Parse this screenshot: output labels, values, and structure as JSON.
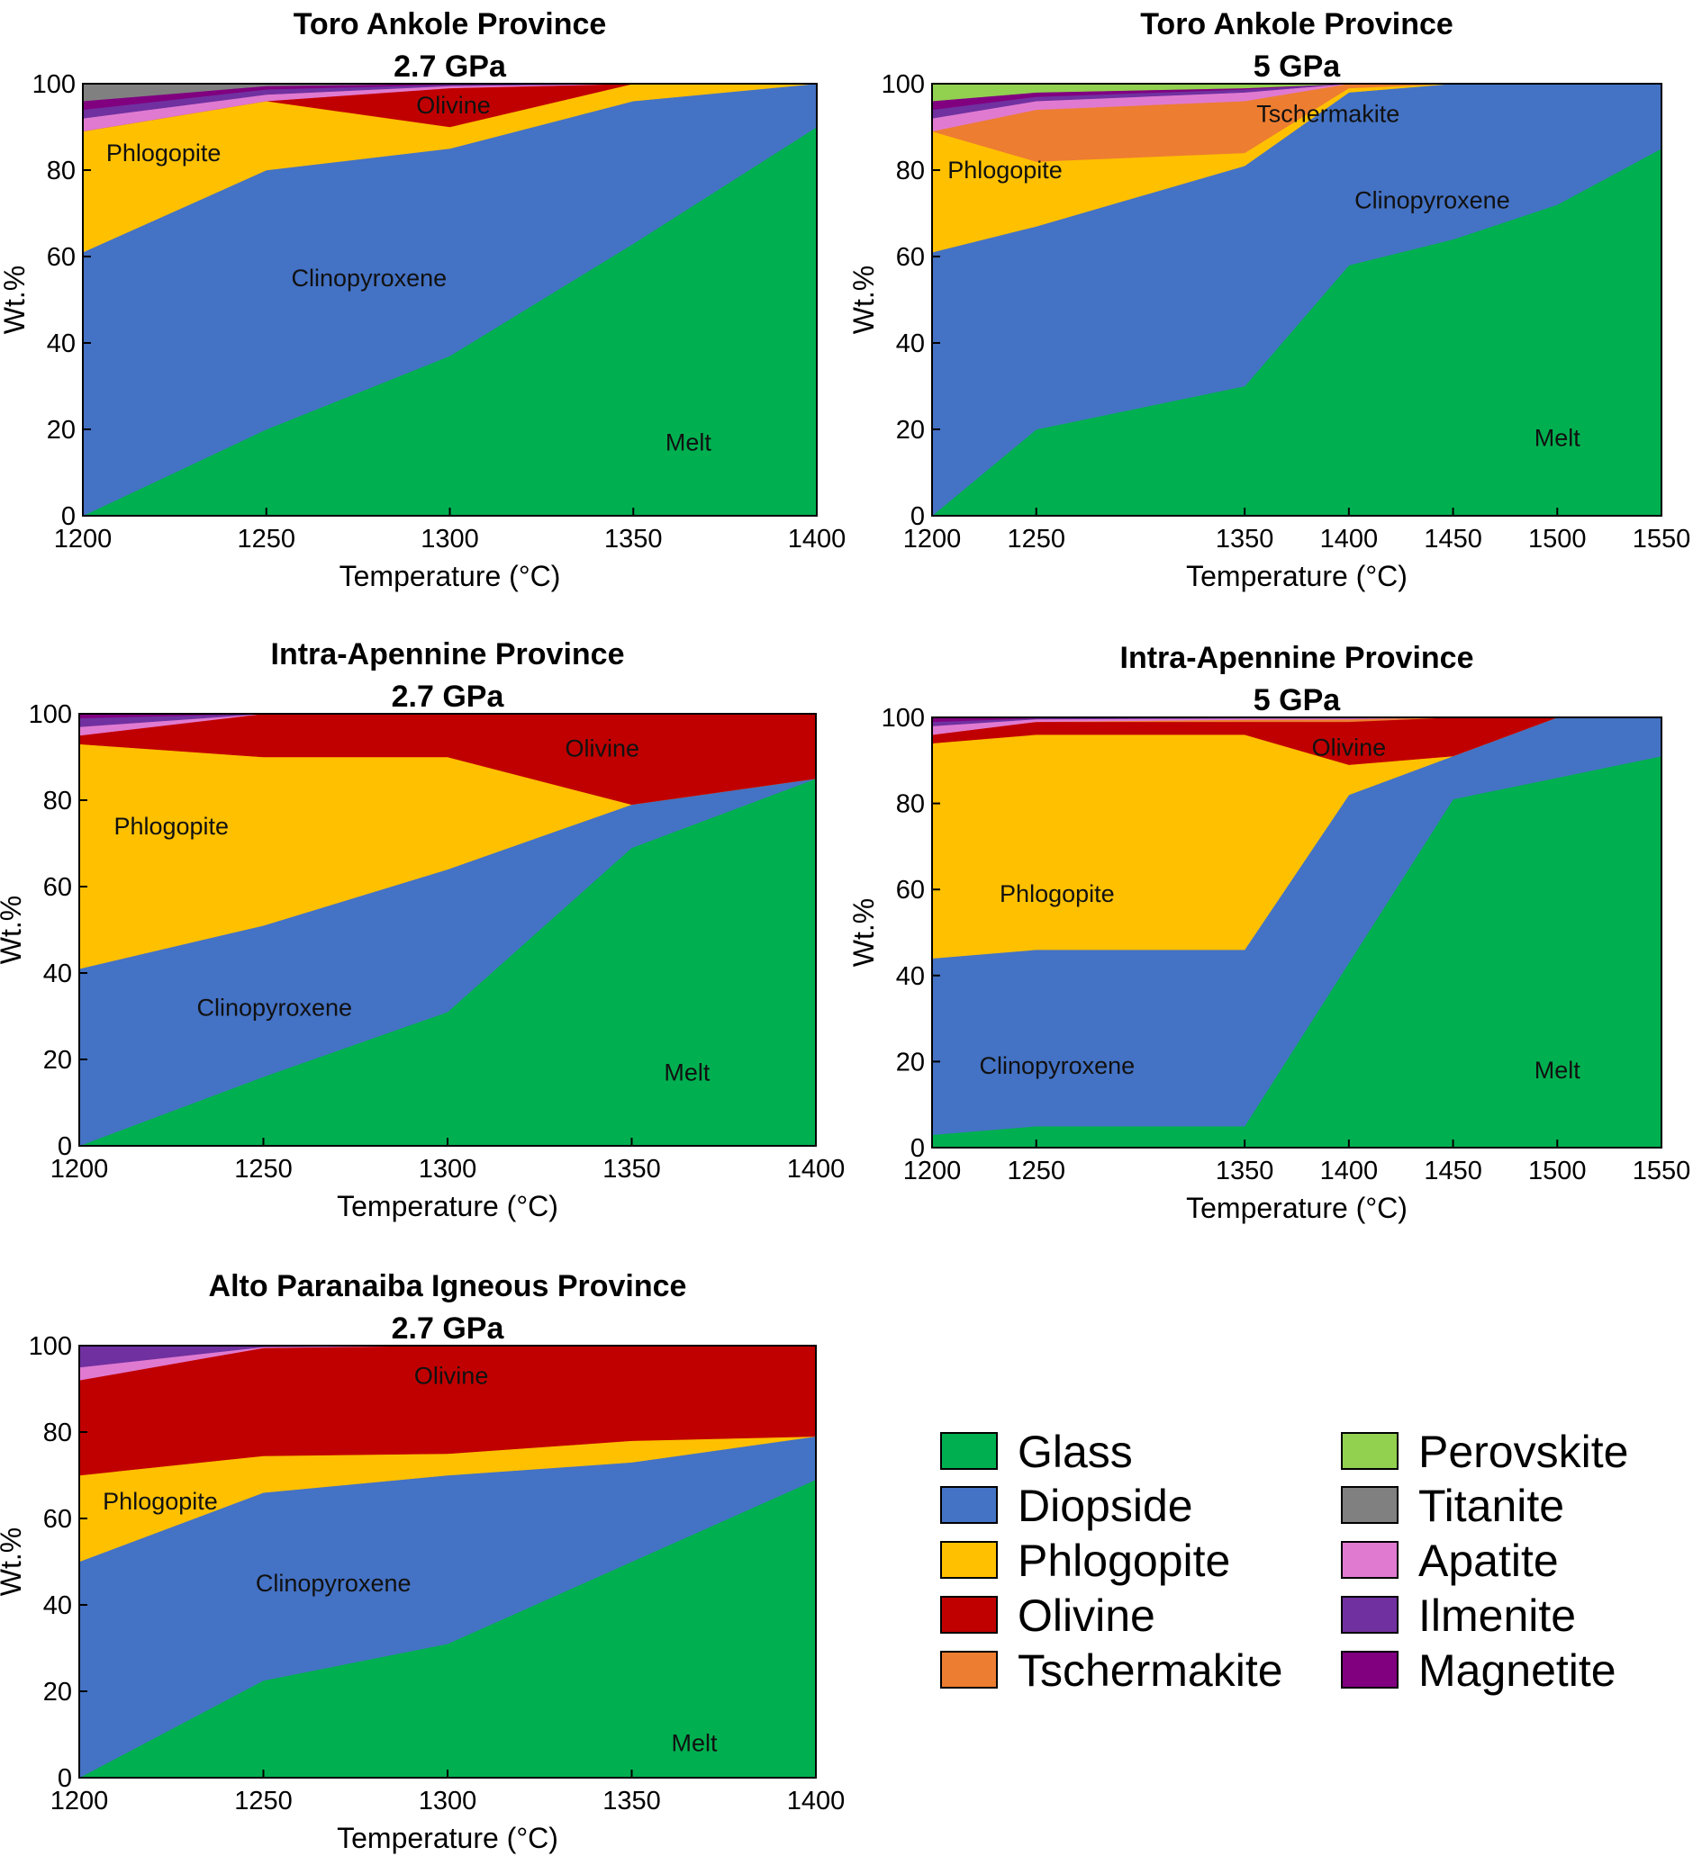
{
  "colors": {
    "Glass": "#00b050",
    "Diopside": "#4472c4",
    "Phlogopite": "#ffc000",
    "Olivine": "#c00000",
    "Tschermakite": "#ed7d31",
    "Perovskite": "#92d050",
    "Titanite": "#808080",
    "Apatite": "#e07ad0",
    "Ilmenite": "#7030a0",
    "Magnetite": "#800080"
  },
  "legend": {
    "col1": [
      "Glass",
      "Diopside",
      "Phlogopite",
      "Olivine",
      "Tschermakite"
    ],
    "col2": [
      "Perovskite",
      "Titanite",
      "Apatite",
      "Ilmenite",
      "Magnetite"
    ]
  },
  "chart_data": [
    {
      "type": "area",
      "title": [
        "Toro Ankole Province",
        "2.7 GPa"
      ],
      "xlabel": "Temperature (°C)",
      "ylabel": "Wt.%",
      "xlim": [
        1200,
        1400
      ],
      "ylim": [
        0,
        100
      ],
      "xticks": [
        1200,
        1250,
        1300,
        1350,
        1400
      ],
      "yticks": [
        0,
        20,
        40,
        60,
        80,
        100
      ],
      "x": [
        1200,
        1250,
        1300,
        1350,
        1400
      ],
      "series": [
        {
          "name": "Glass",
          "values": [
            0,
            20,
            37,
            63,
            90
          ]
        },
        {
          "name": "Diopside",
          "values": [
            61,
            60,
            48,
            33,
            10
          ]
        },
        {
          "name": "Phlogopite",
          "values": [
            28,
            16,
            5,
            4,
            0
          ]
        },
        {
          "name": "Olivine",
          "values": [
            0,
            0,
            9,
            0,
            0
          ]
        },
        {
          "name": "Apatite",
          "values": [
            3,
            1.5,
            0.5,
            0,
            0
          ]
        },
        {
          "name": "Ilmenite",
          "values": [
            2,
            1.2,
            0.3,
            0,
            0
          ]
        },
        {
          "name": "Magnetite",
          "values": [
            2,
            0.8,
            0.2,
            0,
            0
          ]
        },
        {
          "name": "Titanite",
          "values": [
            4,
            0.5,
            0,
            0,
            0
          ]
        }
      ],
      "region_labels": [
        {
          "text": "Phlogopite",
          "x": 1222,
          "y": 84
        },
        {
          "text": "Olivine",
          "x": 1301,
          "y": 95
        },
        {
          "text": "Clinopyroxene",
          "x": 1278,
          "y": 55
        },
        {
          "text": "Melt",
          "x": 1365,
          "y": 17
        }
      ]
    },
    {
      "type": "area",
      "title": [
        "Toro Ankole Province",
        "5 GPa"
      ],
      "xlabel": "Temperature (°C)",
      "ylabel": "Wt.%",
      "xlim": [
        1200,
        1550
      ],
      "ylim": [
        0,
        100
      ],
      "xticks": [
        1200,
        1250,
        1350,
        1400,
        1450,
        1500,
        1550
      ],
      "yticks": [
        0,
        20,
        40,
        60,
        80,
        100
      ],
      "x": [
        1200,
        1250,
        1350,
        1400,
        1450,
        1500,
        1550
      ],
      "series": [
        {
          "name": "Glass",
          "values": [
            0,
            20,
            30,
            58,
            64,
            72,
            85
          ]
        },
        {
          "name": "Diopside",
          "values": [
            61,
            47,
            51,
            40,
            36,
            28,
            15
          ]
        },
        {
          "name": "Phlogopite",
          "values": [
            28,
            15,
            3,
            1,
            0,
            0,
            0
          ]
        },
        {
          "name": "Tschermakite",
          "values": [
            0,
            12,
            12,
            1,
            0,
            0,
            0
          ]
        },
        {
          "name": "Apatite",
          "values": [
            3,
            2,
            2,
            0,
            0,
            0,
            0
          ]
        },
        {
          "name": "Ilmenite",
          "values": [
            2,
            1,
            0.7,
            0,
            0,
            0,
            0
          ]
        },
        {
          "name": "Magnetite",
          "values": [
            2,
            1,
            0.3,
            0,
            0,
            0,
            0
          ]
        },
        {
          "name": "Perovskite",
          "values": [
            4,
            2,
            1,
            0,
            0,
            0,
            0
          ]
        }
      ],
      "region_labels": [
        {
          "text": "Phlogopite",
          "x": 1235,
          "y": 80
        },
        {
          "text": "Tschermakite",
          "x": 1390,
          "y": 93
        },
        {
          "text": "Clinopyroxene",
          "x": 1440,
          "y": 73
        },
        {
          "text": "Melt",
          "x": 1500,
          "y": 18
        }
      ]
    },
    {
      "type": "area",
      "title": [
        "Intra-Apennine Province",
        "2.7 GPa"
      ],
      "xlabel": "Temperature (°C)",
      "ylabel": "Wt.%",
      "xlim": [
        1200,
        1400
      ],
      "ylim": [
        0,
        100
      ],
      "xticks": [
        1200,
        1250,
        1300,
        1350,
        1400
      ],
      "yticks": [
        0,
        20,
        40,
        60,
        80,
        100
      ],
      "x": [
        1200,
        1250,
        1300,
        1350,
        1400
      ],
      "series": [
        {
          "name": "Glass",
          "values": [
            0,
            16,
            31,
            69,
            85
          ]
        },
        {
          "name": "Diopside",
          "values": [
            41,
            35,
            33,
            10,
            0
          ]
        },
        {
          "name": "Phlogopite",
          "values": [
            52,
            39,
            26,
            0,
            0
          ]
        },
        {
          "name": "Olivine",
          "values": [
            2,
            10,
            10,
            21,
            15
          ]
        },
        {
          "name": "Apatite",
          "values": [
            2,
            0,
            0,
            0,
            0
          ]
        },
        {
          "name": "Ilmenite",
          "values": [
            2,
            0,
            0,
            0,
            0
          ]
        },
        {
          "name": "Magnetite",
          "values": [
            1,
            0,
            0,
            0,
            0
          ]
        }
      ],
      "region_labels": [
        {
          "text": "Phlogopite",
          "x": 1225,
          "y": 74
        },
        {
          "text": "Olivine",
          "x": 1342,
          "y": 92
        },
        {
          "text": "Clinopyroxene",
          "x": 1253,
          "y": 32
        },
        {
          "text": "Melt",
          "x": 1365,
          "y": 17
        }
      ]
    },
    {
      "type": "area",
      "title": [
        "Intra-Apennine Province",
        "5 GPa"
      ],
      "xlabel": "Temperature (°C)",
      "ylabel": "Wt.%",
      "xlim": [
        1200,
        1550
      ],
      "ylim": [
        0,
        100
      ],
      "xticks": [
        1200,
        1250,
        1350,
        1400,
        1450,
        1500,
        1550
      ],
      "yticks": [
        0,
        20,
        40,
        60,
        80,
        100
      ],
      "x": [
        1200,
        1250,
        1350,
        1400,
        1450,
        1500,
        1550
      ],
      "series": [
        {
          "name": "Glass",
          "values": [
            3,
            5,
            5,
            43,
            81,
            86,
            91
          ]
        },
        {
          "name": "Diopside",
          "values": [
            41,
            41,
            41,
            39,
            10,
            14,
            9
          ]
        },
        {
          "name": "Phlogopite",
          "values": [
            50,
            50,
            50,
            7,
            0,
            0,
            0
          ]
        },
        {
          "name": "Olivine",
          "values": [
            2,
            3,
            3,
            10,
            9,
            0,
            0
          ]
        },
        {
          "name": "Tschermakite",
          "values": [
            0,
            0,
            0.5,
            0.6,
            0,
            0,
            0
          ]
        },
        {
          "name": "Apatite",
          "values": [
            2,
            0.6,
            0.3,
            0.2,
            0,
            0,
            0
          ]
        },
        {
          "name": "Ilmenite",
          "values": [
            1,
            0.2,
            0.1,
            0.1,
            0,
            0,
            0
          ]
        },
        {
          "name": "Magnetite",
          "values": [
            1,
            0.2,
            0.1,
            0.1,
            0,
            0,
            0
          ]
        }
      ],
      "region_labels": [
        {
          "text": "Phlogopite",
          "x": 1260,
          "y": 59
        },
        {
          "text": "Olivine",
          "x": 1400,
          "y": 93
        },
        {
          "text": "Clinopyroxene",
          "x": 1260,
          "y": 19
        },
        {
          "text": "Melt",
          "x": 1500,
          "y": 18
        }
      ]
    },
    {
      "type": "area",
      "title": [
        "Alto Paranaiba Igneous Province",
        "2.7 GPa"
      ],
      "xlabel": "Temperature (°C)",
      "ylabel": "Wt.%",
      "xlim": [
        1200,
        1400
      ],
      "ylim": [
        0,
        100
      ],
      "xticks": [
        1200,
        1250,
        1300,
        1350,
        1400
      ],
      "yticks": [
        0,
        20,
        40,
        60,
        80,
        100
      ],
      "x": [
        1200,
        1250,
        1300,
        1350,
        1400
      ],
      "series": [
        {
          "name": "Glass",
          "values": [
            0,
            22.5,
            31,
            50,
            69
          ]
        },
        {
          "name": "Diopside",
          "values": [
            50,
            43.5,
            39,
            23,
            10
          ]
        },
        {
          "name": "Phlogopite",
          "values": [
            20,
            8.5,
            5,
            5,
            0
          ]
        },
        {
          "name": "Olivine",
          "values": [
            22,
            25,
            25,
            22,
            21
          ]
        },
        {
          "name": "Apatite",
          "values": [
            3,
            0.2,
            0,
            0,
            0
          ]
        },
        {
          "name": "Ilmenite",
          "values": [
            5,
            0.3,
            0,
            0,
            0
          ]
        }
      ],
      "region_labels": [
        {
          "text": "Phlogopite",
          "x": 1222,
          "y": 64
        },
        {
          "text": "Olivine",
          "x": 1301,
          "y": 93
        },
        {
          "text": "Clinopyroxene",
          "x": 1269,
          "y": 45
        },
        {
          "text": "Melt",
          "x": 1367,
          "y": 8
        }
      ]
    }
  ]
}
